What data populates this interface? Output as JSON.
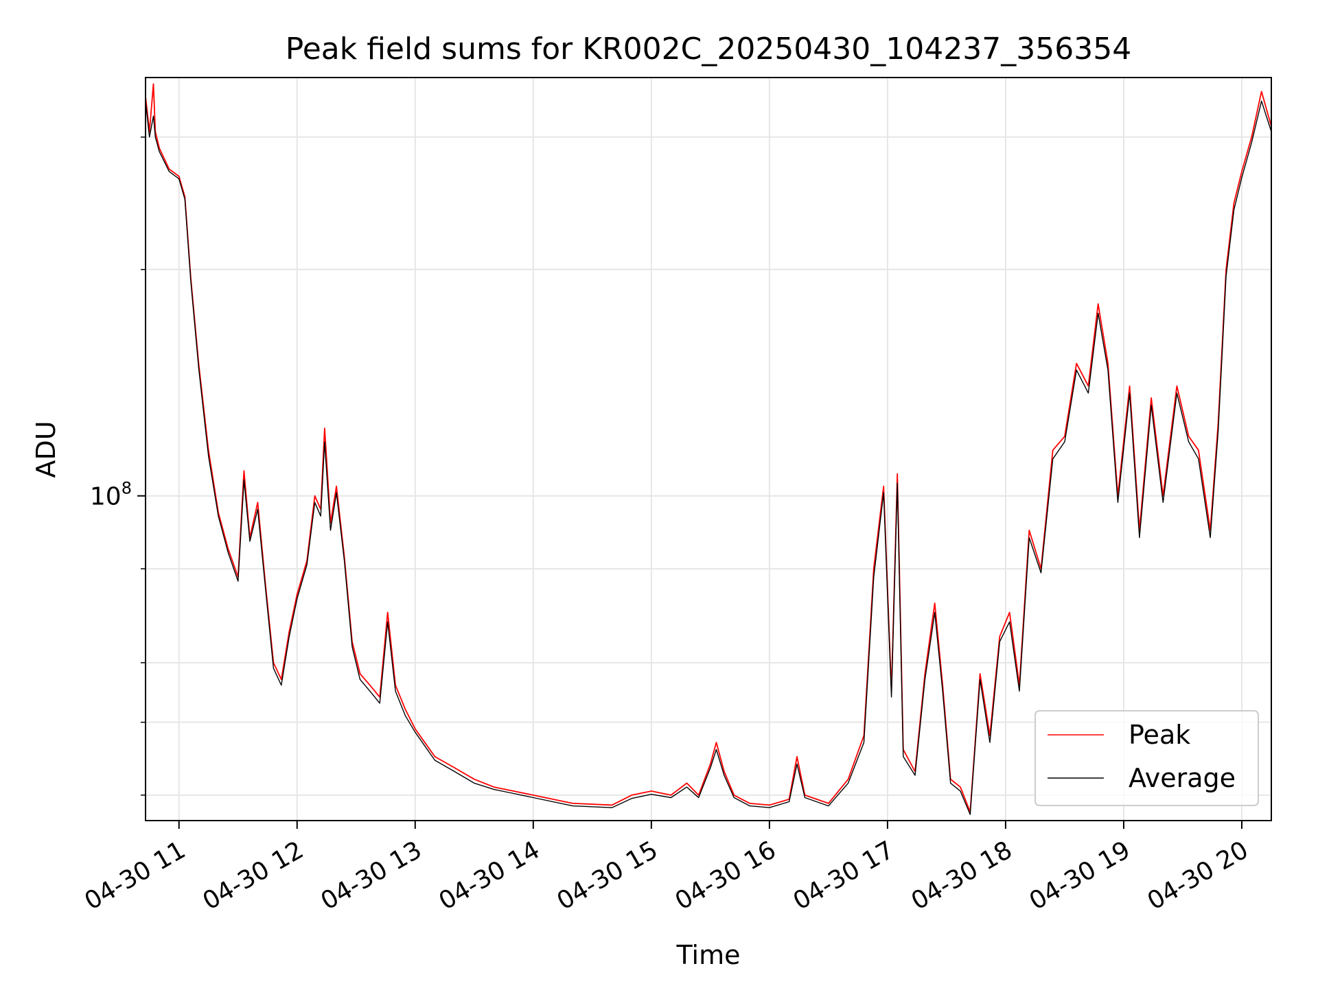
{
  "chart_data": {
    "type": "line",
    "title": "Peak field sums for KR002C_20250430_104237_356354",
    "xlabel": "Time",
    "ylabel": "ADU",
    "yscale": "log",
    "xlim": [
      "2025-04-30T10:43",
      "2025-04-30T20:15"
    ],
    "ylim": [
      37000000,
      360000000
    ],
    "x_ticks": [
      "04-30 11",
      "04-30 12",
      "04-30 13",
      "04-30 14",
      "04-30 15",
      "04-30 16",
      "04-30 17",
      "04-30 18",
      "04-30 19",
      "04-30 20"
    ],
    "x_tick_times": [
      "2025-04-30T11:00",
      "2025-04-30T12:00",
      "2025-04-30T13:00",
      "2025-04-30T14:00",
      "2025-04-30T15:00",
      "2025-04-30T16:00",
      "2025-04-30T17:00",
      "2025-04-30T18:00",
      "2025-04-30T19:00",
      "2025-04-30T20:00"
    ],
    "y_major_ticks": [
      {
        "value": 100000000,
        "base": "10",
        "exponent": "8"
      }
    ],
    "y_minor_ticks": [
      40000000,
      50000000,
      60000000,
      80000000,
      200000000,
      300000000
    ],
    "grid": true,
    "legend_position": "lower-right",
    "series": [
      {
        "name": "Peak",
        "color": "#ff0000",
        "points": [
          [
            "2025-04-30T10:43",
            340000000
          ],
          [
            "2025-04-30T10:45",
            305000000
          ],
          [
            "2025-04-30T10:47",
            353000000
          ],
          [
            "2025-04-30T10:48",
            305000000
          ],
          [
            "2025-04-30T10:50",
            290000000
          ],
          [
            "2025-04-30T10:55",
            272000000
          ],
          [
            "2025-04-30T11:00",
            266000000
          ],
          [
            "2025-04-30T11:03",
            250000000
          ],
          [
            "2025-04-30T11:06",
            195000000
          ],
          [
            "2025-04-30T11:10",
            150000000
          ],
          [
            "2025-04-30T11:15",
            115000000
          ],
          [
            "2025-04-30T11:20",
            95000000
          ],
          [
            "2025-04-30T11:25",
            85000000
          ],
          [
            "2025-04-30T11:30",
            78000000
          ],
          [
            "2025-04-30T11:33",
            108000000
          ],
          [
            "2025-04-30T11:36",
            88000000
          ],
          [
            "2025-04-30T11:40",
            98000000
          ],
          [
            "2025-04-30T11:44",
            76000000
          ],
          [
            "2025-04-30T11:48",
            60000000
          ],
          [
            "2025-04-30T11:52",
            57000000
          ],
          [
            "2025-04-30T11:56",
            66000000
          ],
          [
            "2025-04-30T12:00",
            74000000
          ],
          [
            "2025-04-30T12:05",
            82000000
          ],
          [
            "2025-04-30T12:09",
            100000000
          ],
          [
            "2025-04-30T12:12",
            96000000
          ],
          [
            "2025-04-30T12:14",
            123000000
          ],
          [
            "2025-04-30T12:17",
            92000000
          ],
          [
            "2025-04-30T12:20",
            103000000
          ],
          [
            "2025-04-30T12:24",
            83000000
          ],
          [
            "2025-04-30T12:28",
            64000000
          ],
          [
            "2025-04-30T12:32",
            58000000
          ],
          [
            "2025-04-30T12:37",
            56000000
          ],
          [
            "2025-04-30T12:42",
            54000000
          ],
          [
            "2025-04-30T12:46",
            70000000
          ],
          [
            "2025-04-30T12:50",
            56000000
          ],
          [
            "2025-04-30T12:55",
            52000000
          ],
          [
            "2025-04-30T13:00",
            49000000
          ],
          [
            "2025-04-30T13:10",
            45000000
          ],
          [
            "2025-04-30T13:20",
            43500000
          ],
          [
            "2025-04-30T13:30",
            42000000
          ],
          [
            "2025-04-30T13:40",
            41000000
          ],
          [
            "2025-04-30T13:50",
            40500000
          ],
          [
            "2025-04-30T14:00",
            40000000
          ],
          [
            "2025-04-30T14:20",
            39000000
          ],
          [
            "2025-04-30T14:40",
            38800000
          ],
          [
            "2025-04-30T14:50",
            40000000
          ],
          [
            "2025-04-30T15:00",
            40500000
          ],
          [
            "2025-04-30T15:10",
            40000000
          ],
          [
            "2025-04-30T15:18",
            41500000
          ],
          [
            "2025-04-30T15:24",
            40000000
          ],
          [
            "2025-04-30T15:30",
            44000000
          ],
          [
            "2025-04-30T15:33",
            47000000
          ],
          [
            "2025-04-30T15:37",
            43000000
          ],
          [
            "2025-04-30T15:42",
            40000000
          ],
          [
            "2025-04-30T15:50",
            39000000
          ],
          [
            "2025-04-30T16:00",
            38800000
          ],
          [
            "2025-04-30T16:10",
            39500000
          ],
          [
            "2025-04-30T16:14",
            45000000
          ],
          [
            "2025-04-30T16:18",
            40000000
          ],
          [
            "2025-04-30T16:30",
            39000000
          ],
          [
            "2025-04-30T16:40",
            42000000
          ],
          [
            "2025-04-30T16:48",
            48000000
          ],
          [
            "2025-04-30T16:53",
            80000000
          ],
          [
            "2025-04-30T16:58",
            103000000
          ],
          [
            "2025-04-30T17:02",
            55000000
          ],
          [
            "2025-04-30T17:05",
            107000000
          ],
          [
            "2025-04-30T17:08",
            46000000
          ],
          [
            "2025-04-30T17:14",
            43000000
          ],
          [
            "2025-04-30T17:19",
            58000000
          ],
          [
            "2025-04-30T17:24",
            72000000
          ],
          [
            "2025-04-30T17:28",
            56000000
          ],
          [
            "2025-04-30T17:32",
            42000000
          ],
          [
            "2025-04-30T17:37",
            41000000
          ],
          [
            "2025-04-30T17:42",
            38000000
          ],
          [
            "2025-04-30T17:47",
            58000000
          ],
          [
            "2025-04-30T17:52",
            48000000
          ],
          [
            "2025-04-30T17:57",
            65000000
          ],
          [
            "2025-04-30T18:02",
            70000000
          ],
          [
            "2025-04-30T18:07",
            56000000
          ],
          [
            "2025-04-30T18:12",
            90000000
          ],
          [
            "2025-04-30T18:18",
            80000000
          ],
          [
            "2025-04-30T18:24",
            115000000
          ],
          [
            "2025-04-30T18:30",
            120000000
          ],
          [
            "2025-04-30T18:36",
            150000000
          ],
          [
            "2025-04-30T18:42",
            140000000
          ],
          [
            "2025-04-30T18:47",
            180000000
          ],
          [
            "2025-04-30T18:52",
            150000000
          ],
          [
            "2025-04-30T18:57",
            100000000
          ],
          [
            "2025-04-30T19:03",
            140000000
          ],
          [
            "2025-04-30T19:08",
            90000000
          ],
          [
            "2025-04-30T19:14",
            135000000
          ],
          [
            "2025-04-30T19:20",
            100000000
          ],
          [
            "2025-04-30T19:27",
            140000000
          ],
          [
            "2025-04-30T19:33",
            120000000
          ],
          [
            "2025-04-30T19:38",
            115000000
          ],
          [
            "2025-04-30T19:44",
            90000000
          ],
          [
            "2025-04-30T19:48",
            125000000
          ],
          [
            "2025-04-30T19:52",
            200000000
          ],
          [
            "2025-04-30T19:56",
            245000000
          ],
          [
            "2025-04-30T20:00",
            270000000
          ],
          [
            "2025-04-30T20:05",
            300000000
          ],
          [
            "2025-04-30T20:10",
            345000000
          ],
          [
            "2025-04-30T20:15",
            310000000
          ]
        ]
      },
      {
        "name": "Average",
        "color": "#000000",
        "points": [
          [
            "2025-04-30T10:43",
            335000000
          ],
          [
            "2025-04-30T10:45",
            300000000
          ],
          [
            "2025-04-30T10:47",
            320000000
          ],
          [
            "2025-04-30T10:48",
            300000000
          ],
          [
            "2025-04-30T10:50",
            287000000
          ],
          [
            "2025-04-30T10:55",
            270000000
          ],
          [
            "2025-04-30T11:00",
            264000000
          ],
          [
            "2025-04-30T11:03",
            248000000
          ],
          [
            "2025-04-30T11:06",
            193000000
          ],
          [
            "2025-04-30T11:10",
            148000000
          ],
          [
            "2025-04-30T11:15",
            113000000
          ],
          [
            "2025-04-30T11:20",
            94000000
          ],
          [
            "2025-04-30T11:25",
            84000000
          ],
          [
            "2025-04-30T11:30",
            77000000
          ],
          [
            "2025-04-30T11:33",
            105000000
          ],
          [
            "2025-04-30T11:36",
            87000000
          ],
          [
            "2025-04-30T11:40",
            96000000
          ],
          [
            "2025-04-30T11:44",
            75000000
          ],
          [
            "2025-04-30T11:48",
            59000000
          ],
          [
            "2025-04-30T11:52",
            56000000
          ],
          [
            "2025-04-30T11:56",
            65000000
          ],
          [
            "2025-04-30T12:00",
            73000000
          ],
          [
            "2025-04-30T12:05",
            81000000
          ],
          [
            "2025-04-30T12:09",
            98000000
          ],
          [
            "2025-04-30T12:12",
            94000000
          ],
          [
            "2025-04-30T12:14",
            118000000
          ],
          [
            "2025-04-30T12:17",
            90000000
          ],
          [
            "2025-04-30T12:20",
            101000000
          ],
          [
            "2025-04-30T12:24",
            82000000
          ],
          [
            "2025-04-30T12:28",
            63000000
          ],
          [
            "2025-04-30T12:32",
            57000000
          ],
          [
            "2025-04-30T12:37",
            55000000
          ],
          [
            "2025-04-30T12:42",
            53000000
          ],
          [
            "2025-04-30T12:46",
            68000000
          ],
          [
            "2025-04-30T12:50",
            55000000
          ],
          [
            "2025-04-30T12:55",
            51000000
          ],
          [
            "2025-04-30T13:00",
            48500000
          ],
          [
            "2025-04-30T13:10",
            44500000
          ],
          [
            "2025-04-30T13:20",
            43000000
          ],
          [
            "2025-04-30T13:30",
            41500000
          ],
          [
            "2025-04-30T13:40",
            40700000
          ],
          [
            "2025-04-30T13:50",
            40200000
          ],
          [
            "2025-04-30T14:00",
            39700000
          ],
          [
            "2025-04-30T14:20",
            38700000
          ],
          [
            "2025-04-30T14:40",
            38500000
          ],
          [
            "2025-04-30T14:50",
            39600000
          ],
          [
            "2025-04-30T15:00",
            40100000
          ],
          [
            "2025-04-30T15:10",
            39700000
          ],
          [
            "2025-04-30T15:18",
            41000000
          ],
          [
            "2025-04-30T15:24",
            39700000
          ],
          [
            "2025-04-30T15:30",
            43500000
          ],
          [
            "2025-04-30T15:33",
            46000000
          ],
          [
            "2025-04-30T15:37",
            42500000
          ],
          [
            "2025-04-30T15:42",
            39700000
          ],
          [
            "2025-04-30T15:50",
            38700000
          ],
          [
            "2025-04-30T16:00",
            38500000
          ],
          [
            "2025-04-30T16:10",
            39200000
          ],
          [
            "2025-04-30T16:14",
            44000000
          ],
          [
            "2025-04-30T16:18",
            39700000
          ],
          [
            "2025-04-30T16:30",
            38700000
          ],
          [
            "2025-04-30T16:40",
            41500000
          ],
          [
            "2025-04-30T16:48",
            47000000
          ],
          [
            "2025-04-30T16:53",
            78000000
          ],
          [
            "2025-04-30T16:58",
            101000000
          ],
          [
            "2025-04-30T17:02",
            54000000
          ],
          [
            "2025-04-30T17:05",
            104000000
          ],
          [
            "2025-04-30T17:08",
            45000000
          ],
          [
            "2025-04-30T17:14",
            42500000
          ],
          [
            "2025-04-30T17:19",
            57000000
          ],
          [
            "2025-04-30T17:24",
            70000000
          ],
          [
            "2025-04-30T17:28",
            55000000
          ],
          [
            "2025-04-30T17:32",
            41500000
          ],
          [
            "2025-04-30T17:37",
            40500000
          ],
          [
            "2025-04-30T17:42",
            37700000
          ],
          [
            "2025-04-30T17:47",
            57000000
          ],
          [
            "2025-04-30T17:52",
            47000000
          ],
          [
            "2025-04-30T17:57",
            64000000
          ],
          [
            "2025-04-30T18:02",
            68000000
          ],
          [
            "2025-04-30T18:07",
            55000000
          ],
          [
            "2025-04-30T18:12",
            88000000
          ],
          [
            "2025-04-30T18:18",
            79000000
          ],
          [
            "2025-04-30T18:24",
            112000000
          ],
          [
            "2025-04-30T18:30",
            118000000
          ],
          [
            "2025-04-30T18:36",
            147000000
          ],
          [
            "2025-04-30T18:42",
            137000000
          ],
          [
            "2025-04-30T18:47",
            175000000
          ],
          [
            "2025-04-30T18:52",
            147000000
          ],
          [
            "2025-04-30T18:57",
            98000000
          ],
          [
            "2025-04-30T19:03",
            137000000
          ],
          [
            "2025-04-30T19:08",
            88000000
          ],
          [
            "2025-04-30T19:14",
            132000000
          ],
          [
            "2025-04-30T19:20",
            98000000
          ],
          [
            "2025-04-30T19:27",
            137000000
          ],
          [
            "2025-04-30T19:33",
            118000000
          ],
          [
            "2025-04-30T19:38",
            112000000
          ],
          [
            "2025-04-30T19:44",
            88000000
          ],
          [
            "2025-04-30T19:48",
            122000000
          ],
          [
            "2025-04-30T19:52",
            196000000
          ],
          [
            "2025-04-30T19:56",
            240000000
          ],
          [
            "2025-04-30T20:00",
            265000000
          ],
          [
            "2025-04-30T20:05",
            295000000
          ],
          [
            "2025-04-30T20:10",
            335000000
          ],
          [
            "2025-04-30T20:15",
            305000000
          ]
        ]
      }
    ]
  }
}
